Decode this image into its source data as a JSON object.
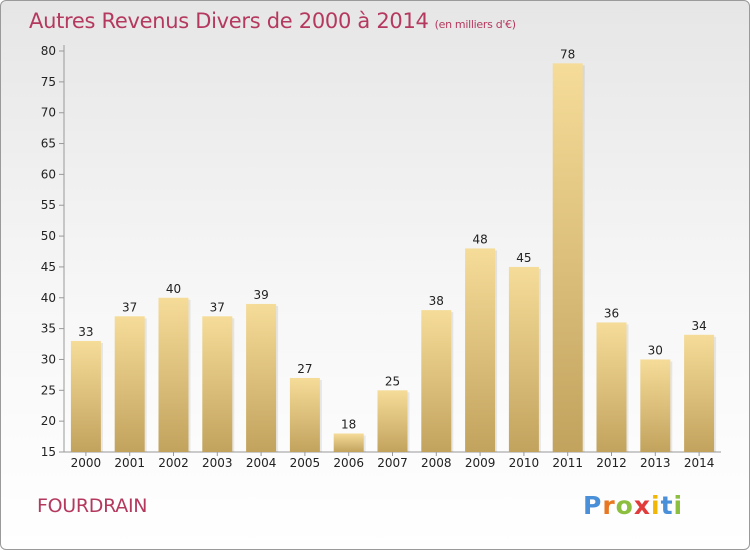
{
  "header": {
    "title": "Autres Revenus Divers de 2000 à 2014",
    "unit": "(en milliers d'€)"
  },
  "footer": {
    "commune": "FOURDRAIN",
    "logo": {
      "letters": [
        "P",
        "r",
        "o",
        "x",
        "i",
        "t",
        "i"
      ],
      "colors": [
        "#4a90d9",
        "#e87722",
        "#8cbf3f",
        "#e23b3b",
        "#f2b705",
        "#4a90d9",
        "#8cbf3f"
      ]
    }
  },
  "chart_data": {
    "type": "bar",
    "title": "Autres Revenus Divers de 2000 à 2014",
    "subtitle": "(en milliers d'€)",
    "categories": [
      "2000",
      "2001",
      "2002",
      "2003",
      "2004",
      "2005",
      "2006",
      "2007",
      "2008",
      "2009",
      "2010",
      "2011",
      "2012",
      "2013",
      "2014"
    ],
    "values": [
      33,
      37,
      40,
      37,
      39,
      27,
      18,
      25,
      38,
      48,
      45,
      78,
      36,
      30,
      34
    ],
    "ylim": [
      15,
      80
    ],
    "yticks": [
      15,
      20,
      25,
      30,
      35,
      40,
      45,
      50,
      55,
      60,
      65,
      70,
      75,
      80
    ],
    "grid": false,
    "colors": {
      "bar_light": "#f5dc98",
      "bar_dark": "#c2a35e",
      "axis": "#999999",
      "text": "#222222"
    }
  }
}
